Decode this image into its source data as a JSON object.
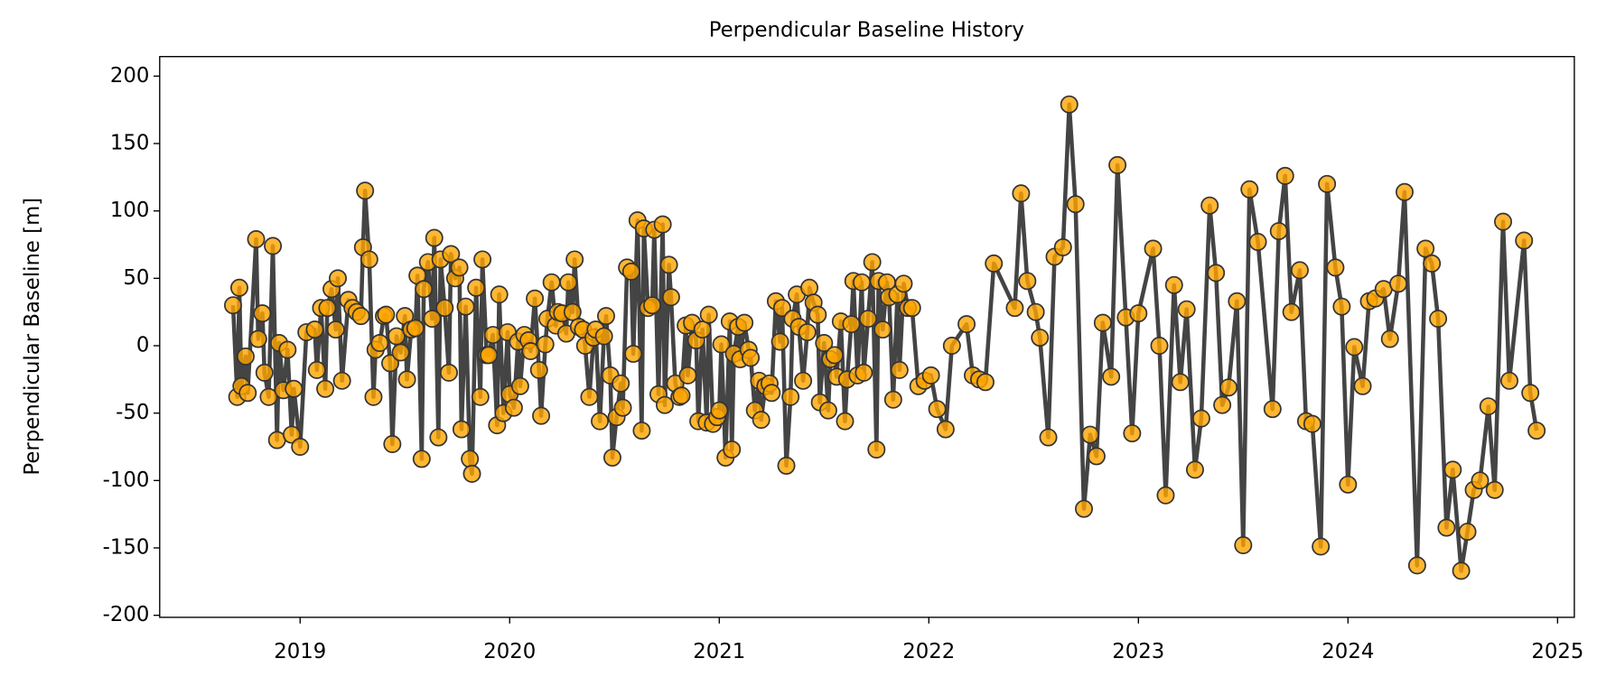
{
  "chart_data": {
    "type": "line",
    "title": "Perpendicular Baseline History",
    "ylabel": "Perpendicular Baseline [m]",
    "line_color": "#444444",
    "marker_color": "#ffa500",
    "marker_edge": "#333333",
    "xlim": [
      2018.33,
      2025.08
    ],
    "xticks": [
      2019,
      2020,
      2021,
      2022,
      2023,
      2024,
      2025
    ],
    "ylim": [
      -201.5,
      214.5
    ],
    "yticks": [
      -200,
      -150,
      -100,
      -50,
      0,
      50,
      100,
      150,
      200
    ],
    "x": [
      2018.68,
      2018.7,
      2018.71,
      2018.72,
      2018.74,
      2018.75,
      2018.79,
      2018.8,
      2018.82,
      2018.83,
      2018.85,
      2018.87,
      2018.89,
      2018.9,
      2018.92,
      2018.94,
      2018.96,
      2018.97,
      2019.0,
      2019.03,
      2019.07,
      2019.08,
      2019.1,
      2019.12,
      2019.13,
      2019.15,
      2019.17,
      2019.18,
      2019.2,
      2019.23,
      2019.25,
      2019.27,
      2019.29,
      2019.3,
      2019.31,
      2019.33,
      2019.35,
      2019.36,
      2019.38,
      2019.4,
      2019.41,
      2019.43,
      2019.44,
      2019.46,
      2019.48,
      2019.5,
      2019.51,
      2019.53,
      2019.55,
      2019.56,
      2019.58,
      2019.59,
      2019.61,
      2019.63,
      2019.64,
      2019.66,
      2019.67,
      2019.69,
      2019.71,
      2019.72,
      2019.74,
      2019.76,
      2019.77,
      2019.79,
      2019.81,
      2019.82,
      2019.84,
      2019.86,
      2019.87,
      2019.89,
      2019.9,
      2019.92,
      2019.94,
      2019.95,
      2019.97,
      2019.99,
      2020.0,
      2020.02,
      2020.04,
      2020.05,
      2020.07,
      2020.09,
      2020.1,
      2020.12,
      2020.14,
      2020.15,
      2020.17,
      2020.18,
      2020.2,
      2020.22,
      2020.23,
      2020.25,
      2020.27,
      2020.28,
      2020.3,
      2020.31,
      2020.33,
      2020.35,
      2020.36,
      2020.38,
      2020.4,
      2020.41,
      2020.43,
      2020.45,
      2020.46,
      2020.48,
      2020.49,
      2020.51,
      2020.53,
      2020.54,
      2020.56,
      2020.58,
      2020.59,
      2020.61,
      2020.63,
      2020.64,
      2020.66,
      2020.68,
      2020.69,
      2020.71,
      2020.73,
      2020.74,
      2020.76,
      2020.77,
      2020.79,
      2020.81,
      2020.82,
      2020.84,
      2020.85,
      2020.87,
      2020.89,
      2020.9,
      2020.92,
      2020.94,
      2020.95,
      2020.97,
      2020.99,
      2021.0,
      2021.01,
      2021.03,
      2021.05,
      2021.06,
      2021.07,
      2021.09,
      2021.1,
      2021.12,
      2021.14,
      2021.15,
      2021.17,
      2021.19,
      2021.2,
      2021.22,
      2021.24,
      2021.25,
      2021.27,
      2021.29,
      2021.3,
      2021.32,
      2021.34,
      2021.35,
      2021.37,
      2021.38,
      2021.4,
      2021.42,
      2021.43,
      2021.45,
      2021.47,
      2021.48,
      2021.5,
      2021.52,
      2021.53,
      2021.55,
      2021.56,
      2021.58,
      2021.6,
      2021.61,
      2021.63,
      2021.64,
      2021.66,
      2021.68,
      2021.69,
      2021.71,
      2021.73,
      2021.75,
      2021.76,
      2021.78,
      2021.8,
      2021.81,
      2021.83,
      2021.85,
      2021.86,
      2021.88,
      2021.9,
      2021.92,
      2021.95,
      2021.98,
      2022.01,
      2022.04,
      2022.08,
      2022.11,
      2022.18,
      2022.21,
      2022.24,
      2022.27,
      2022.31,
      2022.41,
      2022.44,
      2022.47,
      2022.51,
      2022.53,
      2022.57,
      2022.6,
      2022.64,
      2022.67,
      2022.7,
      2022.74,
      2022.77,
      2022.8,
      2022.83,
      2022.87,
      2022.9,
      2022.94,
      2022.97,
      2023.0,
      2023.07,
      2023.1,
      2023.13,
      2023.17,
      2023.2,
      2023.23,
      2023.27,
      2023.3,
      2023.34,
      2023.37,
      2023.4,
      2023.43,
      2023.47,
      2023.5,
      2023.53,
      2023.57,
      2023.64,
      2023.67,
      2023.7,
      2023.73,
      2023.77,
      2023.8,
      2023.83,
      2023.87,
      2023.9,
      2023.94,
      2023.97,
      2024.0,
      2024.03,
      2024.07,
      2024.1,
      2024.13,
      2024.17,
      2024.2,
      2024.24,
      2024.27,
      2024.33,
      2024.37,
      2024.4,
      2024.43,
      2024.47,
      2024.5,
      2024.54,
      2024.57,
      2024.6,
      2024.63,
      2024.67,
      2024.7,
      2024.74,
      2024.77,
      2024.84,
      2024.87,
      2024.9
    ],
    "values": [
      30,
      -38,
      43,
      -30,
      -8,
      -35,
      79,
      5,
      24,
      -20,
      -38,
      74,
      -70,
      2,
      -33,
      -3,
      -66,
      -32,
      -75,
      10,
      12,
      -18,
      28,
      -32,
      28,
      42,
      12,
      50,
      -26,
      34,
      28,
      25,
      22,
      73,
      115,
      64,
      -38,
      -3,
      2,
      22,
      23,
      -13,
      -73,
      7,
      -5,
      22,
      -25,
      12,
      13,
      52,
      -84,
      42,
      62,
      20,
      80,
      -68,
      64,
      28,
      -20,
      68,
      50,
      58,
      -62,
      29,
      -84,
      -95,
      43,
      -38,
      64,
      -7,
      -7,
      8,
      -59,
      38,
      -50,
      10,
      -36,
      -46,
      3,
      -30,
      8,
      4,
      -4,
      35,
      -18,
      -52,
      1,
      20,
      47,
      15,
      25,
      24,
      9,
      47,
      25,
      64,
      14,
      12,
      0,
      -38,
      6,
      12,
      -56,
      7,
      22,
      -22,
      -83,
      -53,
      -28,
      -46,
      58,
      55,
      -6,
      93,
      -63,
      87,
      28,
      30,
      86,
      -36,
      90,
      -44,
      60,
      36,
      -28,
      -38,
      -37,
      15,
      -22,
      17,
      4,
      -56,
      12,
      -57,
      23,
      -58,
      -53,
      -48,
      1,
      -83,
      18,
      -77,
      -6,
      14,
      -10,
      17,
      -3,
      -9,
      -48,
      -26,
      -55,
      -30,
      -28,
      -35,
      33,
      3,
      28,
      -89,
      -38,
      20,
      38,
      14,
      -26,
      10,
      43,
      32,
      23,
      -42,
      2,
      -48,
      -10,
      -7,
      -23,
      18,
      -56,
      -25,
      16,
      48,
      -22,
      47,
      -20,
      20,
      62,
      -77,
      48,
      12,
      47,
      36,
      -40,
      38,
      -18,
      46,
      28,
      28,
      -30,
      -26,
      -22,
      -47,
      -62,
      0,
      16,
      -22,
      -25,
      -27,
      61,
      28,
      113,
      48,
      25,
      6,
      -68,
      66,
      73,
      179,
      105,
      -121,
      -66,
      -82,
      17,
      -23,
      134,
      21,
      -65,
      24,
      72,
      0,
      -111,
      45,
      -27,
      27,
      -92,
      -54,
      104,
      54,
      -44,
      -31,
      33,
      -148,
      116,
      77,
      -47,
      85,
      126,
      25,
      56,
      -56,
      -58,
      -149,
      120,
      58,
      29,
      -103,
      -1,
      -30,
      33,
      35,
      42,
      5,
      46,
      114,
      -163,
      72,
      61,
      20,
      -135,
      -92,
      -167,
      -138,
      -107,
      -100,
      -45,
      -107,
      92,
      -26,
      78,
      -35,
      -63
    ]
  }
}
